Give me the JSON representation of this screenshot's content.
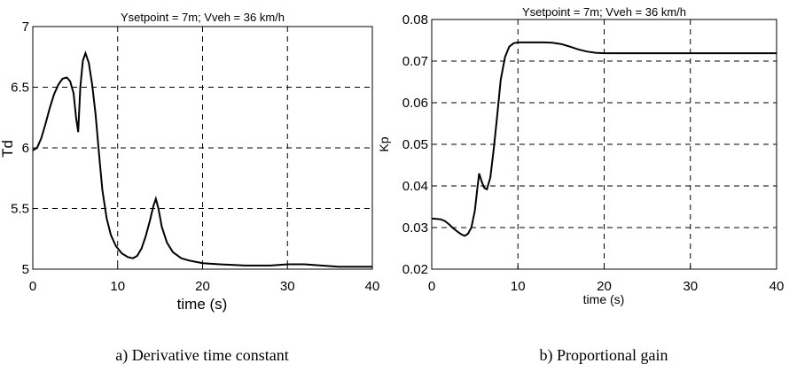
{
  "chart_data": [
    {
      "type": "line",
      "title": "Ysetpoint = 7m; Vveh = 36 km/h",
      "xlabel": "time (s)",
      "ylabel": "Td",
      "xlim": [
        0,
        40
      ],
      "ylim": [
        5,
        7
      ],
      "xticks": [
        "0",
        "10",
        "20",
        "30",
        "40"
      ],
      "yticks": [
        "5",
        "5.5",
        "6",
        "6.5",
        "7"
      ],
      "grid": true,
      "caption": "a) Derivative time constant",
      "series": [
        {
          "x": [
            0,
            0.5,
            1,
            1.5,
            2,
            2.5,
            3,
            3.5,
            4,
            4.4,
            4.8,
            5.1,
            5.35,
            5.6,
            5.9,
            6.2,
            6.6,
            7,
            7.4,
            7.8,
            8.2,
            8.7,
            9.2,
            9.8,
            10.5,
            11.2,
            11.8,
            12.3,
            12.8,
            13.3,
            13.8,
            14.2,
            14.5,
            14.8,
            15.2,
            15.8,
            16.5,
            17.5,
            18.5,
            20,
            22,
            25,
            28,
            30,
            32,
            34,
            36,
            38,
            40
          ],
          "y": [
            5.98,
            6.0,
            6.08,
            6.2,
            6.33,
            6.44,
            6.52,
            6.57,
            6.58,
            6.55,
            6.45,
            6.25,
            6.13,
            6.5,
            6.72,
            6.78,
            6.7,
            6.52,
            6.27,
            5.95,
            5.65,
            5.42,
            5.28,
            5.19,
            5.13,
            5.1,
            5.09,
            5.11,
            5.17,
            5.27,
            5.4,
            5.52,
            5.58,
            5.5,
            5.35,
            5.22,
            5.14,
            5.09,
            5.07,
            5.05,
            5.04,
            5.03,
            5.03,
            5.04,
            5.04,
            5.03,
            5.02,
            5.02,
            5.02
          ]
        }
      ]
    },
    {
      "type": "line",
      "title": "Ysetpoint = 7m; Vveh = 36 km/h",
      "xlabel": "time (s)",
      "ylabel": "Kp",
      "xlim": [
        0,
        40
      ],
      "ylim": [
        0.02,
        0.08
      ],
      "xticks": [
        "0",
        "10",
        "20",
        "30",
        "40"
      ],
      "yticks": [
        "0.02",
        "0.03",
        "0.04",
        "0.05",
        "0.06",
        "0.07",
        "0.08"
      ],
      "grid": true,
      "caption": "b) Proportional gain",
      "series": [
        {
          "x": [
            0,
            1,
            1.5,
            2,
            2.5,
            3,
            3.4,
            3.8,
            4.2,
            4.6,
            5,
            5.3,
            5.5,
            5.8,
            6.1,
            6.4,
            6.8,
            7.2,
            7.6,
            8,
            8.5,
            9,
            9.5,
            10,
            10.5,
            11,
            12,
            13,
            14,
            15,
            16,
            17,
            18,
            19,
            20,
            25,
            30,
            35,
            40
          ],
          "y": [
            0.0322,
            0.032,
            0.0316,
            0.0308,
            0.0298,
            0.029,
            0.0284,
            0.028,
            0.0285,
            0.03,
            0.034,
            0.0395,
            0.043,
            0.041,
            0.0395,
            0.0392,
            0.042,
            0.049,
            0.057,
            0.0655,
            0.071,
            0.0735,
            0.0743,
            0.0745,
            0.0745,
            0.0745,
            0.0745,
            0.0745,
            0.0744,
            0.0741,
            0.0735,
            0.0728,
            0.0723,
            0.072,
            0.0719,
            0.0719,
            0.0719,
            0.0719,
            0.0719
          ]
        }
      ]
    }
  ]
}
